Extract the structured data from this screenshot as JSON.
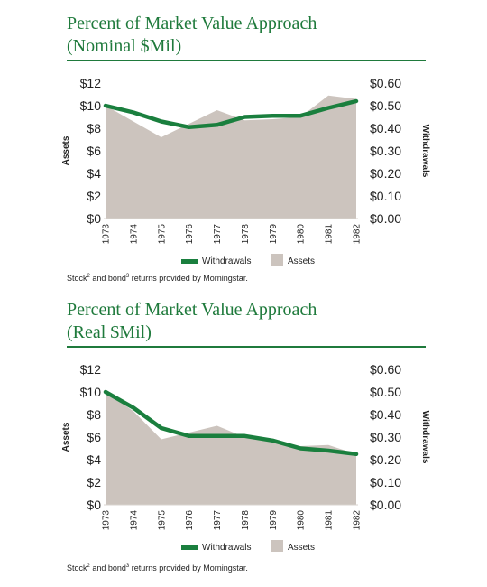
{
  "chart_data": [
    {
      "type": "area",
      "title_line1": "Percent of Market Value Approach",
      "title_line2": "(Nominal $Mil)",
      "categories": [
        "1973",
        "1974",
        "1975",
        "1976",
        "1977",
        "1978",
        "1979",
        "1980",
        "1981",
        "1982"
      ],
      "left_axis": {
        "label": "Assets",
        "ticks": [
          "$12",
          "$10",
          "$8",
          "$6",
          "$4",
          "$2",
          "$0"
        ],
        "ylim": [
          0,
          12
        ]
      },
      "right_axis": {
        "label": "Withdrawals",
        "ticks": [
          "$0.60",
          "$0.50",
          "$0.40",
          "$0.30",
          "$0.20",
          "$0.10",
          "$0.00"
        ],
        "ylim": [
          0,
          0.6
        ]
      },
      "series": [
        {
          "name": "Assets",
          "type": "area",
          "axis": "left",
          "color": "#ccc4be",
          "values": [
            10.0,
            8.6,
            7.2,
            8.4,
            9.6,
            8.7,
            8.8,
            9.0,
            10.9,
            10.6
          ]
        },
        {
          "name": "Withdrawals",
          "type": "line",
          "axis": "right",
          "color": "#1a7f3e",
          "values": [
            0.5,
            0.47,
            0.43,
            0.405,
            0.415,
            0.45,
            0.455,
            0.455,
            0.49,
            0.52
          ]
        }
      ],
      "legend": [
        "Withdrawals",
        "Assets"
      ],
      "note_parts": [
        "Stock",
        "2",
        " and bond",
        "3",
        " returns provided by Morningstar."
      ]
    },
    {
      "type": "area",
      "title_line1": "Percent of Market Value Approach",
      "title_line2": "(Real $Mil)",
      "categories": [
        "1973",
        "1974",
        "1975",
        "1976",
        "1977",
        "1978",
        "1979",
        "1980",
        "1981",
        "1982"
      ],
      "left_axis": {
        "label": "Assets",
        "ticks": [
          "$12",
          "$10",
          "$8",
          "$6",
          "$4",
          "$2",
          "$0"
        ],
        "ylim": [
          0,
          12
        ]
      },
      "right_axis": {
        "label": "Withdrawals",
        "ticks": [
          "$0.60",
          "$0.50",
          "$0.40",
          "$0.30",
          "$0.20",
          "$0.10",
          "$0.00"
        ],
        "ylim": [
          0,
          0.6
        ]
      },
      "series": [
        {
          "name": "Assets",
          "type": "area",
          "axis": "left",
          "color": "#ccc4be",
          "values": [
            10.0,
            8.3,
            5.8,
            6.4,
            7.0,
            6.0,
            5.8,
            5.2,
            5.3,
            4.5
          ]
        },
        {
          "name": "Withdrawals",
          "type": "line",
          "axis": "right",
          "color": "#1a7f3e",
          "values": [
            0.5,
            0.43,
            0.34,
            0.305,
            0.305,
            0.305,
            0.285,
            0.25,
            0.24,
            0.225
          ]
        }
      ],
      "legend": [
        "Withdrawals",
        "Assets"
      ],
      "note_parts": [
        "Stock",
        "2",
        " and bond",
        "3",
        " returns provided by Morningstar."
      ]
    }
  ]
}
